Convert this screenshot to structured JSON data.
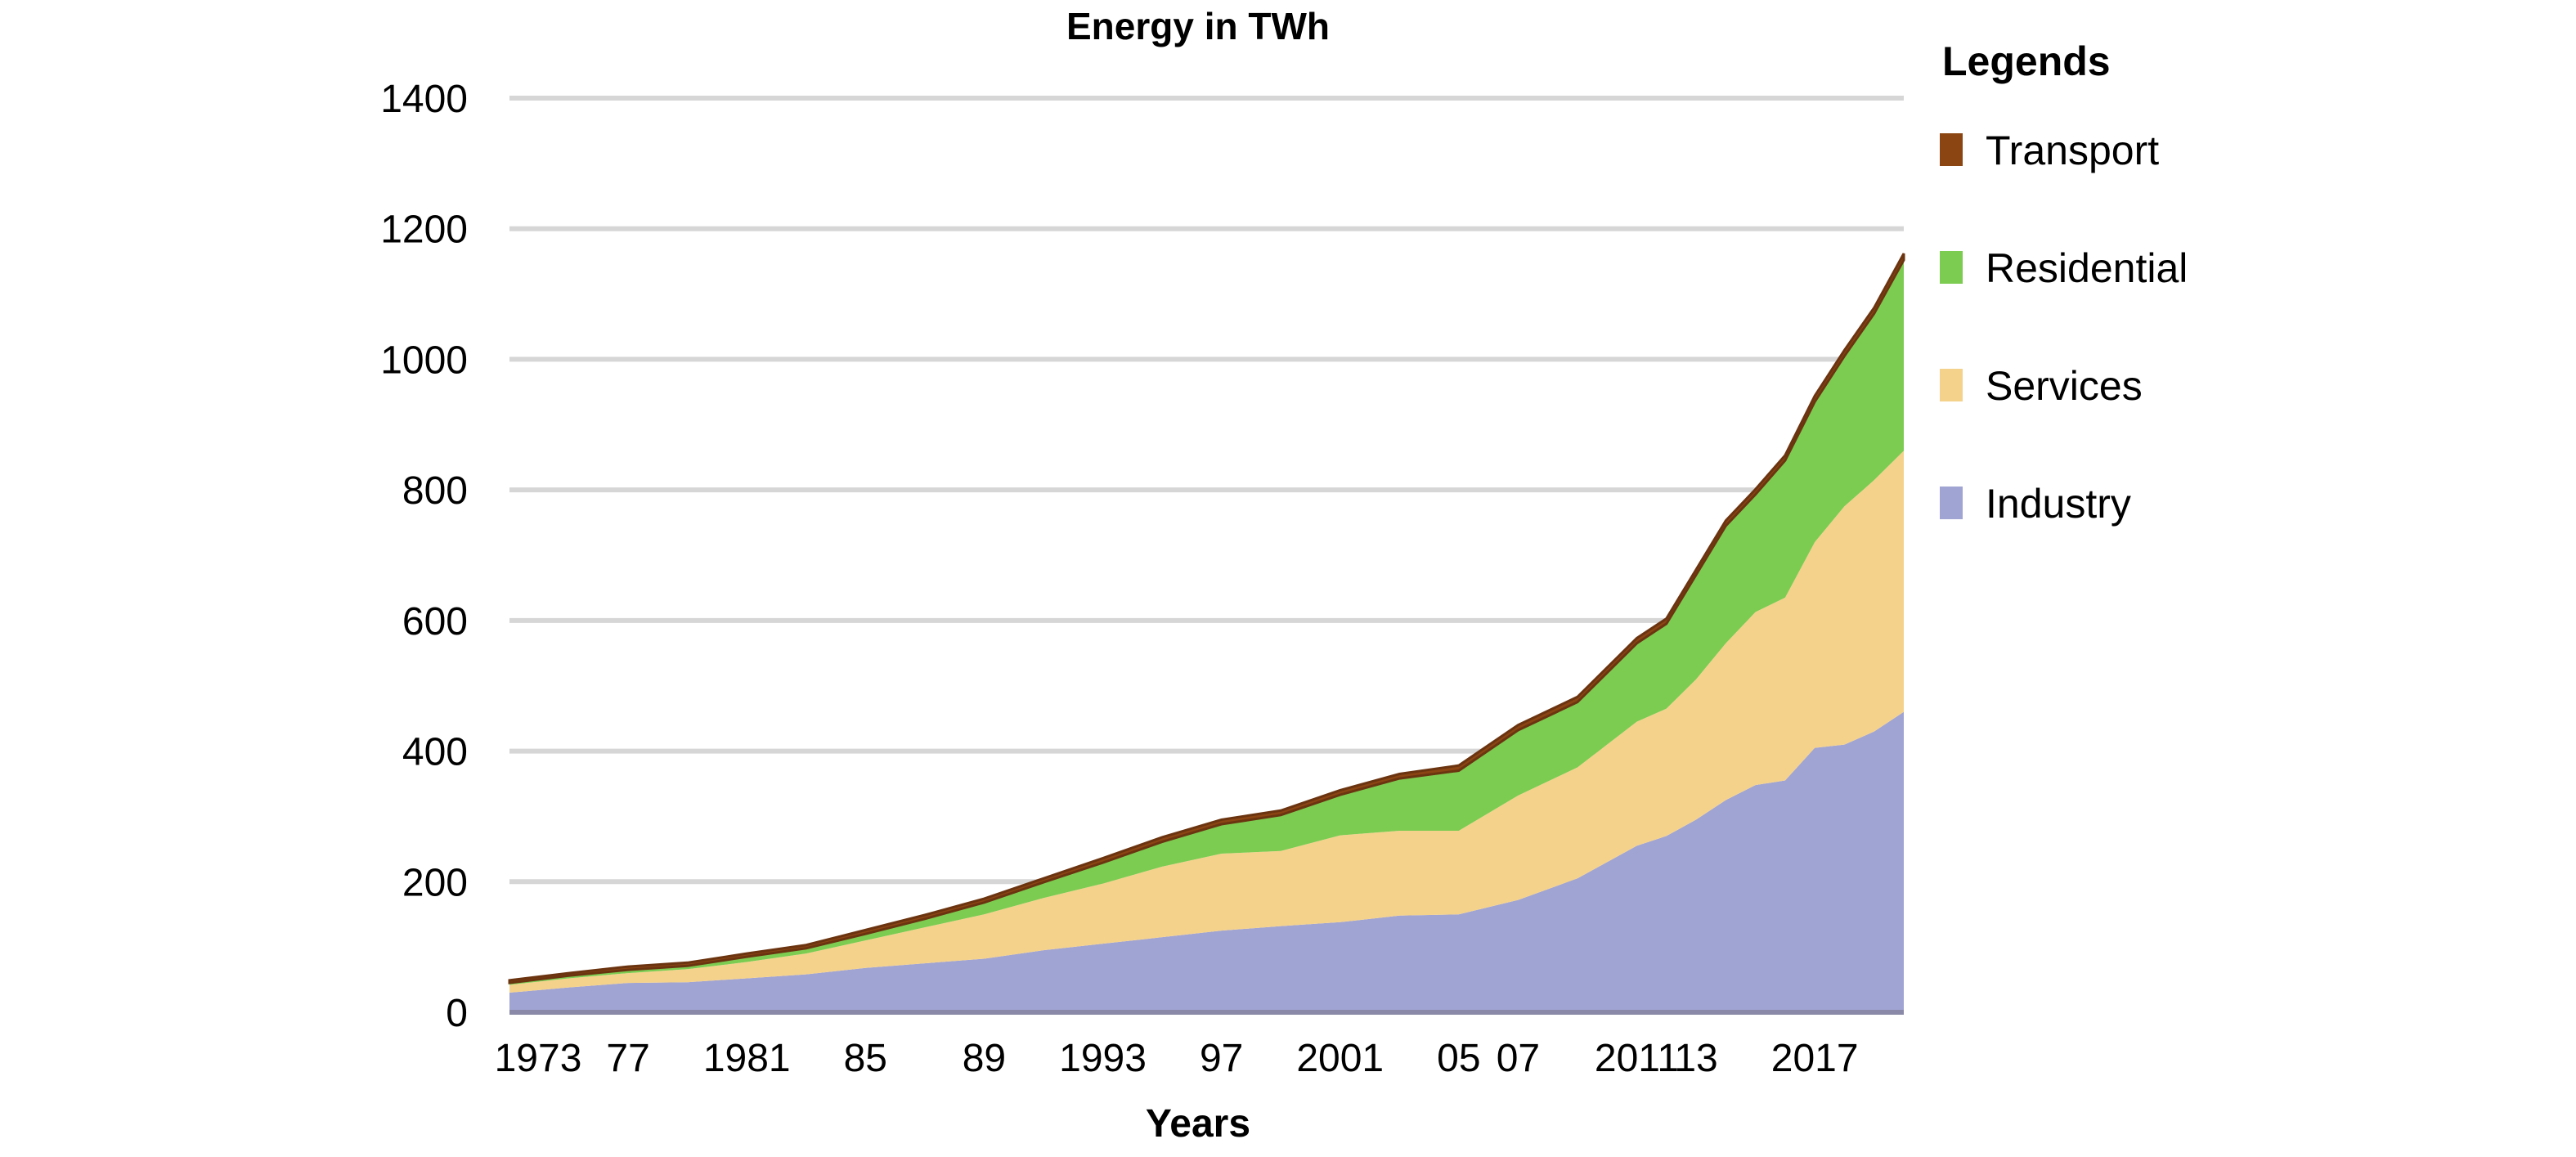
{
  "chart_data": {
    "type": "area",
    "stacked": true,
    "title": "Energy in TWh",
    "xlabel": "Years",
    "ylabel": "",
    "ylim": [
      0,
      1400
    ],
    "yticks": [
      0,
      200,
      400,
      600,
      800,
      1000,
      1200,
      1400
    ],
    "xlim": [
      1973,
      2020
    ],
    "xtick_labels": [
      {
        "year": 1973,
        "label": "1973"
      },
      {
        "year": 1977,
        "label": "77"
      },
      {
        "year": 1981,
        "label": "1981"
      },
      {
        "year": 1985,
        "label": "85"
      },
      {
        "year": 1989,
        "label": "89"
      },
      {
        "year": 1993,
        "label": "1993"
      },
      {
        "year": 1997,
        "label": "97"
      },
      {
        "year": 2001,
        "label": "2001"
      },
      {
        "year": 2005,
        "label": "05"
      },
      {
        "year": 2007,
        "label": "07"
      },
      {
        "year": 2011,
        "label": "2011"
      },
      {
        "year": 2013,
        "label": "13"
      },
      {
        "year": 2017,
        "label": "2017"
      }
    ],
    "grid": true,
    "legend_title": "Legends",
    "legend_position": "right",
    "x": [
      1973,
      1975,
      1977,
      1979,
      1981,
      1983,
      1985,
      1987,
      1989,
      1991,
      1993,
      1995,
      1997,
      1999,
      2001,
      2003,
      2005,
      2007,
      2009,
      2011,
      2012,
      2013,
      2014,
      2015,
      2016,
      2017,
      2018,
      2019,
      2020
    ],
    "series": [
      {
        "name": "Industry",
        "color": "#a0a4d2",
        "values": [
          30,
          38,
          45,
          46,
          52,
          58,
          68,
          75,
          82,
          95,
          105,
          115,
          125,
          132,
          138,
          148,
          150,
          172,
          205,
          255,
          270,
          295,
          325,
          348,
          355,
          405,
          410,
          430,
          460
        ]
      },
      {
        "name": "Services",
        "color": "#f5d28c",
        "values": [
          12,
          14,
          15,
          20,
          25,
          32,
          42,
          55,
          68,
          80,
          92,
          108,
          118,
          115,
          133,
          130,
          128,
          160,
          170,
          190,
          195,
          215,
          240,
          265,
          280,
          315,
          365,
          385,
          400
        ]
      },
      {
        "name": "Residential",
        "color": "#7ccc52",
        "values": [
          3,
          4,
          5,
          5,
          8,
          8,
          10,
          13,
          18,
          24,
          32,
          38,
          45,
          55,
          62,
          80,
          92,
          100,
          100,
          120,
          130,
          160,
          180,
          180,
          210,
          215,
          230,
          255,
          292
        ]
      },
      {
        "name": "Transport",
        "color": "#8b4513",
        "values": [
          4,
          4,
          5,
          5,
          5,
          5,
          6,
          6,
          6,
          6,
          7,
          7,
          7,
          7,
          7,
          7,
          8,
          8,
          8,
          8,
          8,
          8,
          8,
          8,
          8,
          9,
          9,
          9,
          10
        ]
      }
    ]
  }
}
